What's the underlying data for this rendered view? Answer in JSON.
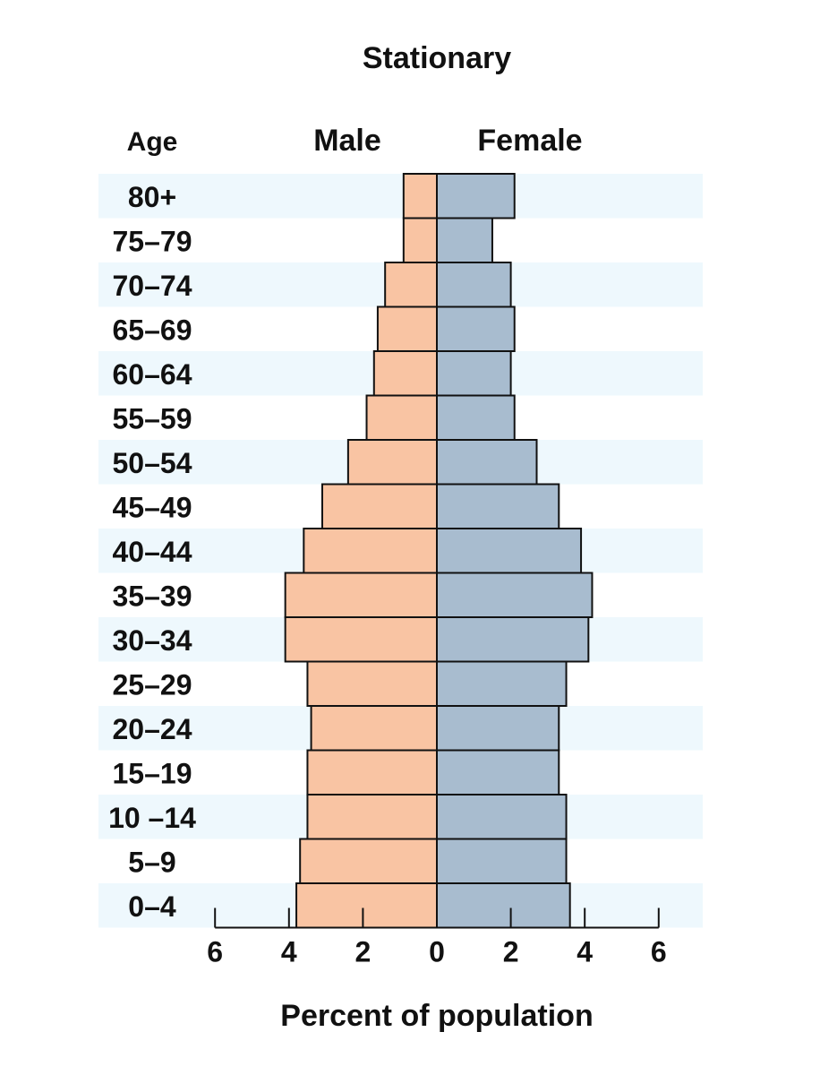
{
  "chart_data": {
    "type": "bar",
    "orientation": "horizontal-population-pyramid",
    "title": "Stationary",
    "age_label": "Age",
    "xlabel": "Percent of population",
    "xlim": [
      -6,
      6
    ],
    "x_ticks": [
      6,
      4,
      2,
      0,
      2,
      4,
      6
    ],
    "grid": false,
    "categories": [
      "80+",
      "75–79",
      "70–74",
      "65–69",
      "60–64",
      "55–59",
      "50–54",
      "45–49",
      "40–44",
      "35–39",
      "30–34",
      "25–29",
      "20–24",
      "15–19",
      "10 –14",
      "5–9",
      "0–4"
    ],
    "series": [
      {
        "name": "Male",
        "color": "#f9c4a3",
        "values": [
          0.9,
          0.9,
          1.4,
          1.6,
          1.7,
          1.9,
          2.4,
          3.1,
          3.6,
          4.1,
          4.1,
          3.5,
          3.4,
          3.5,
          3.5,
          3.7,
          3.8
        ]
      },
      {
        "name": "Female",
        "color": "#a8bccf",
        "values": [
          2.1,
          1.5,
          2.0,
          2.1,
          2.0,
          2.1,
          2.7,
          3.3,
          3.9,
          4.2,
          4.1,
          3.5,
          3.3,
          3.3,
          3.5,
          3.5,
          3.6
        ]
      }
    ],
    "band_color": "#eef8fd"
  }
}
